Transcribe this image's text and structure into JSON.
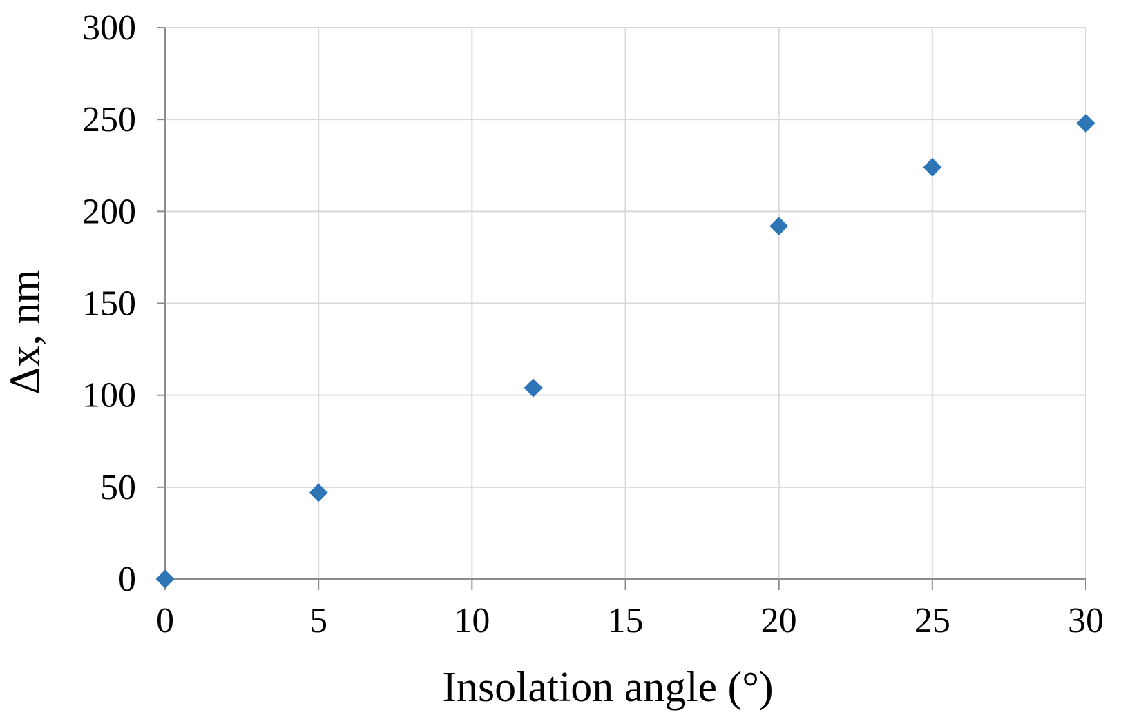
{
  "chart_data": {
    "type": "scatter",
    "title": "",
    "xlabel": "Insolation angle (°)",
    "ylabel": "Δx, nm",
    "xlim": [
      0,
      30
    ],
    "ylim": [
      0,
      300
    ],
    "x_ticks": [
      0,
      5,
      10,
      15,
      20,
      25,
      30
    ],
    "y_ticks": [
      0,
      50,
      100,
      150,
      200,
      250,
      300
    ],
    "grid": true,
    "legend": false,
    "series": [
      {
        "marker": "diamond",
        "color": "#2E75B6",
        "points": [
          [
            0,
            0
          ],
          [
            5,
            47
          ],
          [
            12,
            104
          ],
          [
            20,
            192
          ],
          [
            25,
            224
          ],
          [
            30,
            248
          ]
        ]
      }
    ],
    "colors": {
      "gridline": "#D9D9DB",
      "axis": "#8A8D8F",
      "tick_text": "#000000"
    }
  }
}
